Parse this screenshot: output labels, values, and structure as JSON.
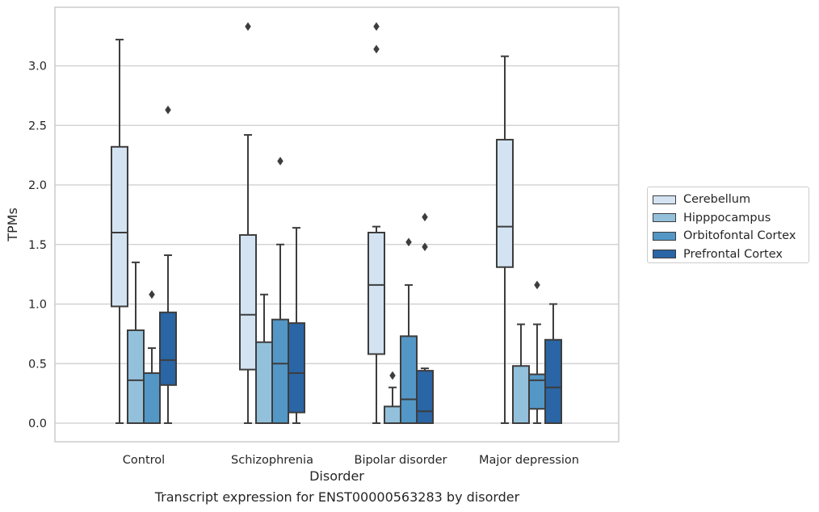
{
  "caption": "Transcript expression for ENST00000563283 by disorder",
  "chart_data": {
    "type": "box",
    "xlabel": "Disorder",
    "ylabel": "TPMs",
    "ylim": [
      -0.16,
      3.49
    ],
    "yticks": [
      0.0,
      0.5,
      1.0,
      1.5,
      2.0,
      2.5,
      3.0
    ],
    "ytick_labels": [
      "0.0",
      "0.5",
      "1.0",
      "1.5",
      "2.0",
      "2.5",
      "3.0"
    ],
    "grid": true,
    "legend_position": "right",
    "categories": [
      "Control",
      "Schizophrenia",
      "Bipolar disorder",
      "Major depression"
    ],
    "series": [
      {
        "name": "Cerebellum",
        "color": "#d3e3f2",
        "boxes": [
          {
            "lw": 0.0,
            "q1": 0.98,
            "median": 1.6,
            "q3": 2.32,
            "uw": 3.22,
            "outliers": []
          },
          {
            "lw": 0.0,
            "q1": 0.45,
            "median": 0.91,
            "q3": 1.58,
            "uw": 2.42,
            "outliers": [
              3.33
            ]
          },
          {
            "lw": 0.0,
            "q1": 0.58,
            "median": 1.16,
            "q3": 1.6,
            "uw": 1.65,
            "outliers": [
              3.33,
              3.14
            ]
          },
          {
            "lw": 0.0,
            "q1": 1.31,
            "median": 1.65,
            "q3": 2.38,
            "uw": 3.08,
            "outliers": []
          }
        ]
      },
      {
        "name": "Hipppocampus",
        "color": "#93c1dc",
        "boxes": [
          {
            "lw": 0.0,
            "q1": 0.0,
            "median": 0.36,
            "q3": 0.78,
            "uw": 1.35,
            "outliers": []
          },
          {
            "lw": 0.0,
            "q1": 0.0,
            "median": 0.0,
            "q3": 0.68,
            "uw": 1.08,
            "outliers": []
          },
          {
            "lw": 0.0,
            "q1": 0.0,
            "median": 0.0,
            "q3": 0.14,
            "uw": 0.3,
            "outliers": [
              0.4
            ]
          },
          {
            "lw": 0.0,
            "q1": 0.0,
            "median": 0.0,
            "q3": 0.48,
            "uw": 0.83,
            "outliers": []
          }
        ]
      },
      {
        "name": "Orbitofontal Cortex",
        "color": "#5397c6",
        "boxes": [
          {
            "lw": 0.0,
            "q1": 0.0,
            "median": 0.0,
            "q3": 0.42,
            "uw": 0.63,
            "outliers": [
              1.08
            ]
          },
          {
            "lw": 0.0,
            "q1": 0.0,
            "median": 0.5,
            "q3": 0.87,
            "uw": 1.5,
            "outliers": [
              2.2
            ]
          },
          {
            "lw": 0.0,
            "q1": 0.0,
            "median": 0.2,
            "q3": 0.73,
            "uw": 1.16,
            "outliers": [
              1.52
            ]
          },
          {
            "lw": 0.0,
            "q1": 0.12,
            "median": 0.36,
            "q3": 0.41,
            "uw": 0.83,
            "outliers": [
              1.16
            ]
          }
        ]
      },
      {
        "name": "Prefrontal Cortex",
        "color": "#2a65a5",
        "boxes": [
          {
            "lw": 0.0,
            "q1": 0.32,
            "median": 0.53,
            "q3": 0.93,
            "uw": 1.41,
            "outliers": [
              2.63
            ]
          },
          {
            "lw": 0.0,
            "q1": 0.09,
            "median": 0.42,
            "q3": 0.84,
            "uw": 1.64,
            "outliers": []
          },
          {
            "lw": 0.0,
            "q1": 0.0,
            "median": 0.1,
            "q3": 0.44,
            "uw": 0.46,
            "outliers": [
              1.73,
              1.48
            ]
          },
          {
            "lw": 0.0,
            "q1": 0.0,
            "median": 0.3,
            "q3": 0.7,
            "uw": 1.0,
            "outliers": []
          }
        ]
      }
    ]
  }
}
